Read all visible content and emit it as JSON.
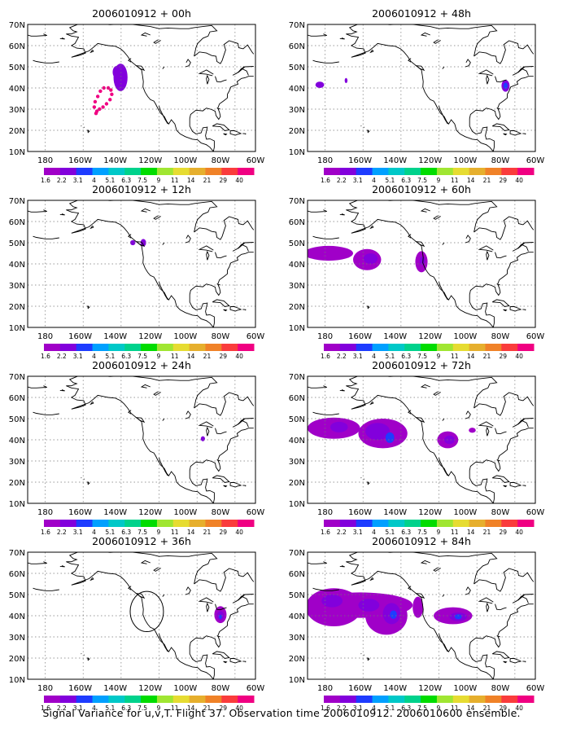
{
  "caption": "Signal Variance for u,v,T. Flight 37. Observation time 2006010912. 2006010600 ensemble.",
  "colors": {
    "land": "#000000",
    "grid": "#777777",
    "scale": [
      "#a000c8",
      "#8200dc",
      "#1e3cff",
      "#00a0ff",
      "#00c8c8",
      "#00d28c",
      "#00dc00",
      "#a0e632",
      "#e6dc32",
      "#e6af2d",
      "#f08228",
      "#fa3c3c",
      "#f00082"
    ]
  },
  "axes": {
    "lat_labels": [
      "10N",
      "20N",
      "30N",
      "40N",
      "50N",
      "60N",
      "70N"
    ],
    "lon_labels": [
      "180",
      "160W",
      "140W",
      "120W",
      "100W",
      "80W",
      "60W"
    ],
    "lon_range": [
      -190,
      -60
    ],
    "lat_range": [
      10,
      70
    ]
  },
  "colorbar_labels": [
    "1.6",
    "2.2",
    "3.1",
    "4",
    "5.1",
    "6.3",
    "7.5",
    "9",
    "11",
    "14",
    "21",
    "29",
    "40"
  ],
  "panels": [
    {
      "title": "2006010912 + 00h",
      "blobs": [
        {
          "lon": -137,
          "lat": 45,
          "rx": 4,
          "ry": 6.5,
          "level": 1
        },
        {
          "lon": -139,
          "lat": 47.5,
          "rx": 2.5,
          "ry": 3,
          "level": 1
        }
      ],
      "dots": [
        [
          -151,
          28
        ],
        [
          -152,
          31
        ],
        [
          -151.5,
          33.5
        ],
        [
          -150,
          36
        ],
        [
          -148.5,
          38.5
        ],
        [
          -146.5,
          40
        ],
        [
          -144,
          40
        ],
        [
          -142.5,
          39
        ],
        [
          -142,
          37
        ],
        [
          -143,
          34.5
        ],
        [
          -145,
          32.5
        ],
        [
          -147,
          31
        ],
        [
          -149,
          30
        ],
        [
          -150.5,
          29
        ]
      ]
    },
    {
      "title": "2006010912 + 48h",
      "blobs": [
        {
          "lon": -183,
          "lat": 41.5,
          "rx": 2.5,
          "ry": 1.5,
          "level": 1
        },
        {
          "lon": -168,
          "lat": 43.5,
          "rx": 0.8,
          "ry": 1.2,
          "level": 1
        },
        {
          "lon": -77,
          "lat": 41,
          "rx": 2.3,
          "ry": 2.8,
          "level": 1
        },
        {
          "lon": -77,
          "lat": 41,
          "rx": 1.2,
          "ry": 1.5,
          "level": 2
        }
      ]
    },
    {
      "title": "2006010912 + 12h",
      "blobs": [
        {
          "lon": -130,
          "lat": 50,
          "rx": 1.5,
          "ry": 1.2,
          "level": 1
        },
        {
          "lon": -124,
          "lat": 50,
          "rx": 1.6,
          "ry": 1.8,
          "level": 1
        }
      ]
    },
    {
      "title": "2006010912 + 60h",
      "blobs": [
        {
          "lon": -178,
          "lat": 45,
          "rx": 14,
          "ry": 3.5,
          "level": 0
        },
        {
          "lon": -156,
          "lat": 42,
          "rx": 8,
          "ry": 5,
          "level": 0
        },
        {
          "lon": -154,
          "lat": 42.5,
          "rx": 4,
          "ry": 2.5,
          "level": 1
        },
        {
          "lon": -125,
          "lat": 41,
          "rx": 3.5,
          "ry": 5,
          "level": 0
        },
        {
          "lon": -124.5,
          "lat": 41.5,
          "rx": 1.5,
          "ry": 2,
          "level": 1
        }
      ]
    },
    {
      "title": "2006010912 + 24h",
      "blobs": [
        {
          "lon": -90,
          "lat": 40.5,
          "rx": 1.2,
          "ry": 1.2,
          "level": 1
        }
      ]
    },
    {
      "title": "2006010912 + 72h",
      "blobs": [
        {
          "lon": -175,
          "lat": 45.5,
          "rx": 15,
          "ry": 5,
          "level": 0
        },
        {
          "lon": -147,
          "lat": 43,
          "rx": 14,
          "ry": 7,
          "level": 0
        },
        {
          "lon": -172,
          "lat": 46,
          "rx": 5,
          "ry": 2.5,
          "level": 1
        },
        {
          "lon": -150,
          "lat": 44,
          "rx": 7,
          "ry": 4,
          "level": 1
        },
        {
          "lon": -143,
          "lat": 41,
          "rx": 2.5,
          "ry": 2.5,
          "level": 2
        },
        {
          "lon": -110,
          "lat": 40,
          "rx": 6,
          "ry": 4,
          "level": 0
        },
        {
          "lon": -109,
          "lat": 40,
          "rx": 3,
          "ry": 2,
          "level": 1
        },
        {
          "lon": -96,
          "lat": 44.5,
          "rx": 2,
          "ry": 1.2,
          "level": 0
        }
      ]
    },
    {
      "title": "2006010912 + 36h",
      "circle": {
        "lon": -122,
        "lat": 42,
        "r": 9.5
      },
      "blobs": [
        {
          "lon": -80,
          "lat": 40.5,
          "rx": 3.5,
          "ry": 4,
          "level": 0
        },
        {
          "lon": -80,
          "lat": 40,
          "rx": 2,
          "ry": 2.2,
          "level": 1
        },
        {
          "lon": -80,
          "lat": 39.5,
          "rx": 0.8,
          "ry": 1,
          "level": 2
        }
      ]
    },
    {
      "title": "2006010912 + 84h",
      "blobs": [
        {
          "lon": -160,
          "lat": 45,
          "rx": 30,
          "ry": 6,
          "level": 0
        },
        {
          "lon": -175,
          "lat": 44,
          "rx": 16,
          "ry": 9,
          "level": 0
        },
        {
          "lon": -145,
          "lat": 40,
          "rx": 12,
          "ry": 9,
          "level": 0
        },
        {
          "lon": -176,
          "lat": 47,
          "rx": 6,
          "ry": 3,
          "level": 1
        },
        {
          "lon": -155,
          "lat": 45,
          "rx": 6,
          "ry": 3,
          "level": 1
        },
        {
          "lon": -142,
          "lat": 41,
          "rx": 5,
          "ry": 5,
          "level": 1
        },
        {
          "lon": -141,
          "lat": 40.5,
          "rx": 2,
          "ry": 2,
          "level": 2
        },
        {
          "lon": -107,
          "lat": 40,
          "rx": 11,
          "ry": 4,
          "level": 0
        },
        {
          "lon": -104,
          "lat": 39.5,
          "rx": 5,
          "ry": 2,
          "level": 1
        },
        {
          "lon": -104,
          "lat": 39.5,
          "rx": 2,
          "ry": 1.2,
          "level": 2
        },
        {
          "lon": -127,
          "lat": 44,
          "rx": 3,
          "ry": 5,
          "level": 0
        }
      ]
    }
  ]
}
